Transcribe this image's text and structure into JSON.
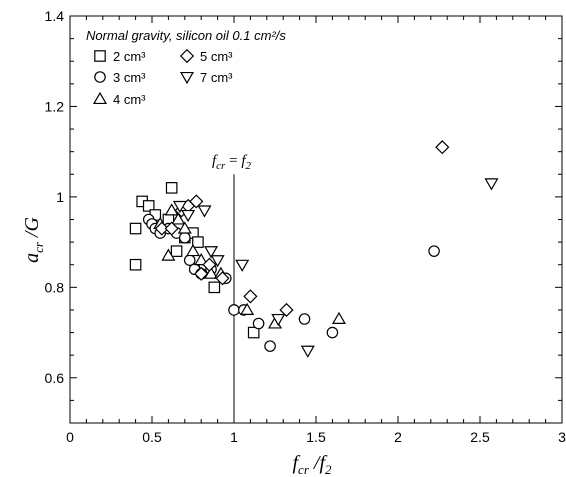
{
  "chart_data": {
    "type": "scatter",
    "title": "",
    "xlabel": "f_cr /f_2",
    "ylabel": "a_cr /G",
    "xlim": [
      0,
      3
    ],
    "ylim": [
      0.5,
      1.4
    ],
    "xticks": [
      "0",
      "0.5",
      "1",
      "1.5",
      "2",
      "2.5",
      "3"
    ],
    "yticks": [
      "0.6",
      "0.8",
      "1",
      "1.2",
      "1.4"
    ],
    "legend_title": "Normal gravity, silicon oil 0.1 cm²/s",
    "legend_position": "top-left",
    "grid": false,
    "vline": {
      "x": 1.0,
      "label": "f_cr = f_2"
    },
    "series": [
      {
        "name": "2 cm³",
        "marker": "square",
        "points": [
          [
            0.4,
            0.93
          ],
          [
            0.4,
            0.85
          ],
          [
            0.44,
            0.99
          ],
          [
            0.48,
            0.98
          ],
          [
            0.52,
            0.96
          ],
          [
            0.55,
            0.93
          ],
          [
            0.6,
            0.95
          ],
          [
            0.62,
            1.02
          ],
          [
            0.65,
            0.88
          ],
          [
            0.7,
            0.91
          ],
          [
            0.75,
            0.92
          ],
          [
            0.78,
            0.9
          ],
          [
            0.82,
            0.84
          ],
          [
            0.88,
            0.8
          ],
          [
            1.12,
            0.7
          ]
        ]
      },
      {
        "name": "3 cm³",
        "marker": "circle",
        "points": [
          [
            0.48,
            0.95
          ],
          [
            0.5,
            0.94
          ],
          [
            0.52,
            0.93
          ],
          [
            0.55,
            0.92
          ],
          [
            0.6,
            0.93
          ],
          [
            0.65,
            0.92
          ],
          [
            0.7,
            0.91
          ],
          [
            0.73,
            0.86
          ],
          [
            0.76,
            0.84
          ],
          [
            0.8,
            0.83
          ],
          [
            0.86,
            0.84
          ],
          [
            0.95,
            0.82
          ],
          [
            1.0,
            0.75
          ],
          [
            1.06,
            0.75
          ],
          [
            1.15,
            0.72
          ],
          [
            1.22,
            0.67
          ],
          [
            1.43,
            0.73
          ],
          [
            1.6,
            0.7
          ],
          [
            2.22,
            0.88
          ]
        ]
      },
      {
        "name": "4 cm³",
        "marker": "triangle-up",
        "points": [
          [
            0.55,
            0.94
          ],
          [
            0.6,
            0.87
          ],
          [
            0.62,
            0.97
          ],
          [
            0.66,
            0.95
          ],
          [
            0.7,
            0.93
          ],
          [
            0.75,
            0.88
          ],
          [
            0.8,
            0.86
          ],
          [
            0.86,
            0.83
          ],
          [
            0.92,
            0.83
          ],
          [
            1.08,
            0.75
          ],
          [
            1.25,
            0.72
          ],
          [
            1.64,
            0.73
          ]
        ]
      },
      {
        "name": "5 cm³",
        "marker": "diamond",
        "points": [
          [
            0.56,
            0.93
          ],
          [
            0.62,
            0.93
          ],
          [
            0.68,
            0.97
          ],
          [
            0.72,
            0.98
          ],
          [
            0.77,
            0.99
          ],
          [
            0.8,
            0.83
          ],
          [
            0.85,
            0.85
          ],
          [
            0.93,
            0.82
          ],
          [
            1.1,
            0.78
          ],
          [
            1.32,
            0.75
          ],
          [
            2.27,
            1.11
          ]
        ]
      },
      {
        "name": "7 cm³",
        "marker": "triangle-down",
        "points": [
          [
            0.67,
            0.98
          ],
          [
            0.72,
            0.96
          ],
          [
            0.82,
            0.97
          ],
          [
            0.86,
            0.88
          ],
          [
            0.9,
            0.86
          ],
          [
            1.05,
            0.85
          ],
          [
            1.27,
            0.73
          ],
          [
            1.45,
            0.66
          ],
          [
            2.57,
            1.03
          ]
        ]
      }
    ]
  }
}
